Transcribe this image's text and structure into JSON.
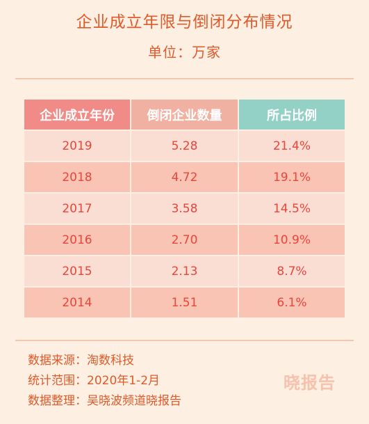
{
  "header": {
    "title": "企业成立年限与倒闭分布情况",
    "unit": "单位：万家"
  },
  "table": {
    "columns": [
      "企业成立年份",
      "倒闭企业数量",
      "所占比例"
    ],
    "rows": [
      {
        "year": "2019",
        "count": "5.28",
        "share": "21.4%"
      },
      {
        "year": "2018",
        "count": "4.72",
        "share": "19.1%"
      },
      {
        "year": "2017",
        "count": "3.58",
        "share": "14.5%"
      },
      {
        "year": "2016",
        "count": "2.70",
        "share": "10.9%"
      },
      {
        "year": "2015",
        "count": "2.13",
        "share": "8.7%"
      },
      {
        "year": "2014",
        "count": "1.51",
        "share": "6.1%"
      }
    ]
  },
  "footer": {
    "source": "数据来源：淘数科技",
    "period": "统计范围：2020年1-2月",
    "compiler": "数据整理：吴晓波频道晓报告"
  },
  "watermark": "晓报告",
  "colors": {
    "background": "#fdf0e2",
    "accent": "#e0592a",
    "header_col1": "#f08b88",
    "header_col2": "#f0b0a2",
    "header_col3": "#93d1c6",
    "row_light": "#fbded3",
    "row_dark": "#f9c4b3"
  }
}
